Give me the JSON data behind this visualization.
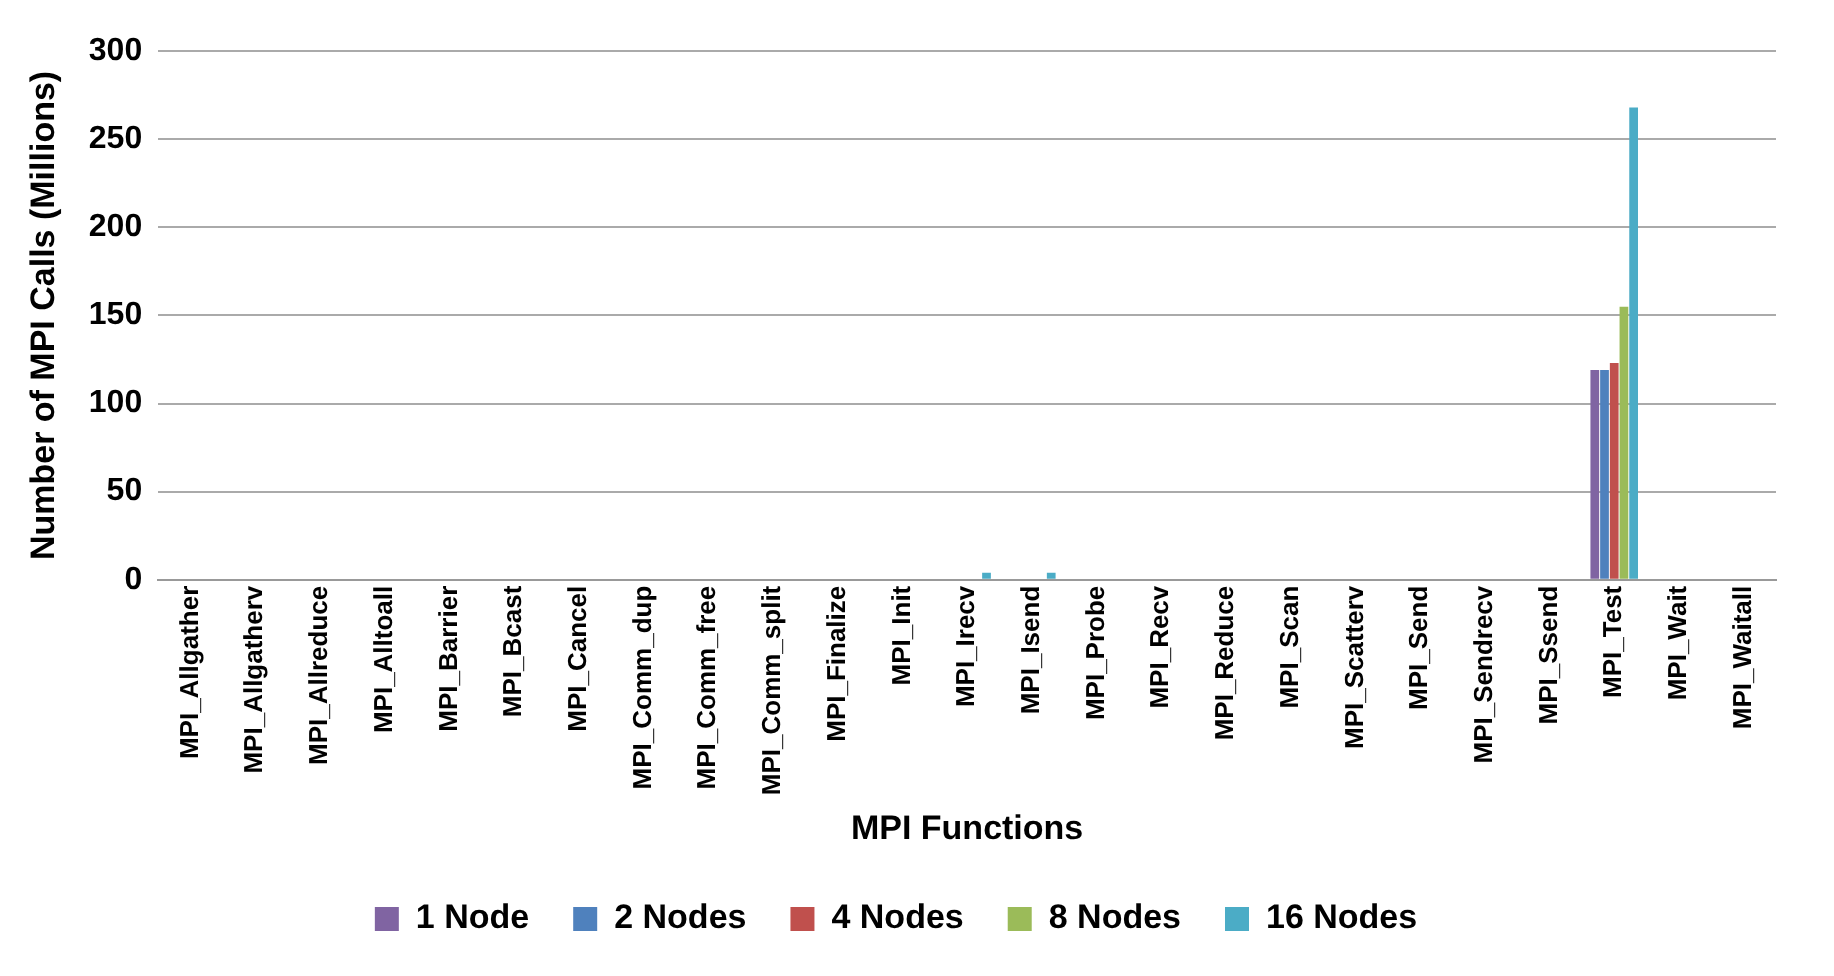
{
  "chart_data": {
    "type": "bar",
    "xlabel": "MPI Functions",
    "ylabel": "Number of MPI Calls (Millions)",
    "categories": [
      "MPI_Allgather",
      "MPI_Allgatherv",
      "MPI_Allreduce",
      "MPI_Alltoall",
      "MPI_Barrier",
      "MPI_Bcast",
      "MPI_Cancel",
      "MPI_Comm_dup",
      "MPI_Comm_free",
      "MPI_Comm_split",
      "MPI_Finalize",
      "MPI_Init",
      "MPI_Irecv",
      "MPI_Isend",
      "MPI_Probe",
      "MPI_Recv",
      "MPI_Reduce",
      "MPI_Scan",
      "MPI_Scatterv",
      "MPI_Send",
      "MPI_Sendrecv",
      "MPI_Ssend",
      "MPI_Test",
      "MPI_Wait",
      "MPI_Waitall"
    ],
    "series": [
      {
        "name": "1 Node",
        "color": "#8064a2",
        "values": [
          0,
          0,
          0,
          0,
          0,
          0,
          0,
          0,
          0,
          0,
          0,
          0,
          0,
          0,
          0,
          0,
          0,
          0,
          0,
          0,
          0,
          0,
          119,
          0,
          0
        ]
      },
      {
        "name": "2 Nodes",
        "color": "#4f81bd",
        "values": [
          0,
          0,
          0,
          0,
          0,
          0,
          0,
          0,
          0,
          0,
          0,
          0,
          0,
          0,
          0,
          0,
          0,
          0,
          0,
          0,
          0,
          0,
          119,
          0,
          0
        ]
      },
      {
        "name": "4 Nodes",
        "color": "#c0504d",
        "values": [
          0,
          0,
          0,
          0,
          0,
          0,
          0,
          0,
          0,
          0,
          0,
          0,
          0,
          0,
          0,
          0,
          0,
          0,
          0,
          0,
          0,
          0,
          123,
          0,
          0
        ]
      },
      {
        "name": "8 Nodes",
        "color": "#9bbb59",
        "values": [
          0,
          0,
          0,
          0,
          0,
          0,
          0,
          0,
          0,
          0,
          0,
          0,
          0,
          0,
          0,
          0,
          0,
          0,
          0,
          0,
          0,
          0,
          155,
          0,
          0
        ]
      },
      {
        "name": "16 Nodes",
        "color": "#4bacc6",
        "values": [
          0,
          0,
          0,
          0,
          0,
          0,
          0,
          0,
          0,
          0,
          0,
          0,
          4,
          4,
          0,
          0,
          0,
          0,
          0,
          0,
          0,
          0,
          268,
          0,
          0
        ]
      }
    ],
    "ylim": [
      0,
      300
    ],
    "yticks": [
      0,
      50,
      100,
      150,
      200,
      250,
      300
    ],
    "grid": "y",
    "legend": "bottom"
  }
}
